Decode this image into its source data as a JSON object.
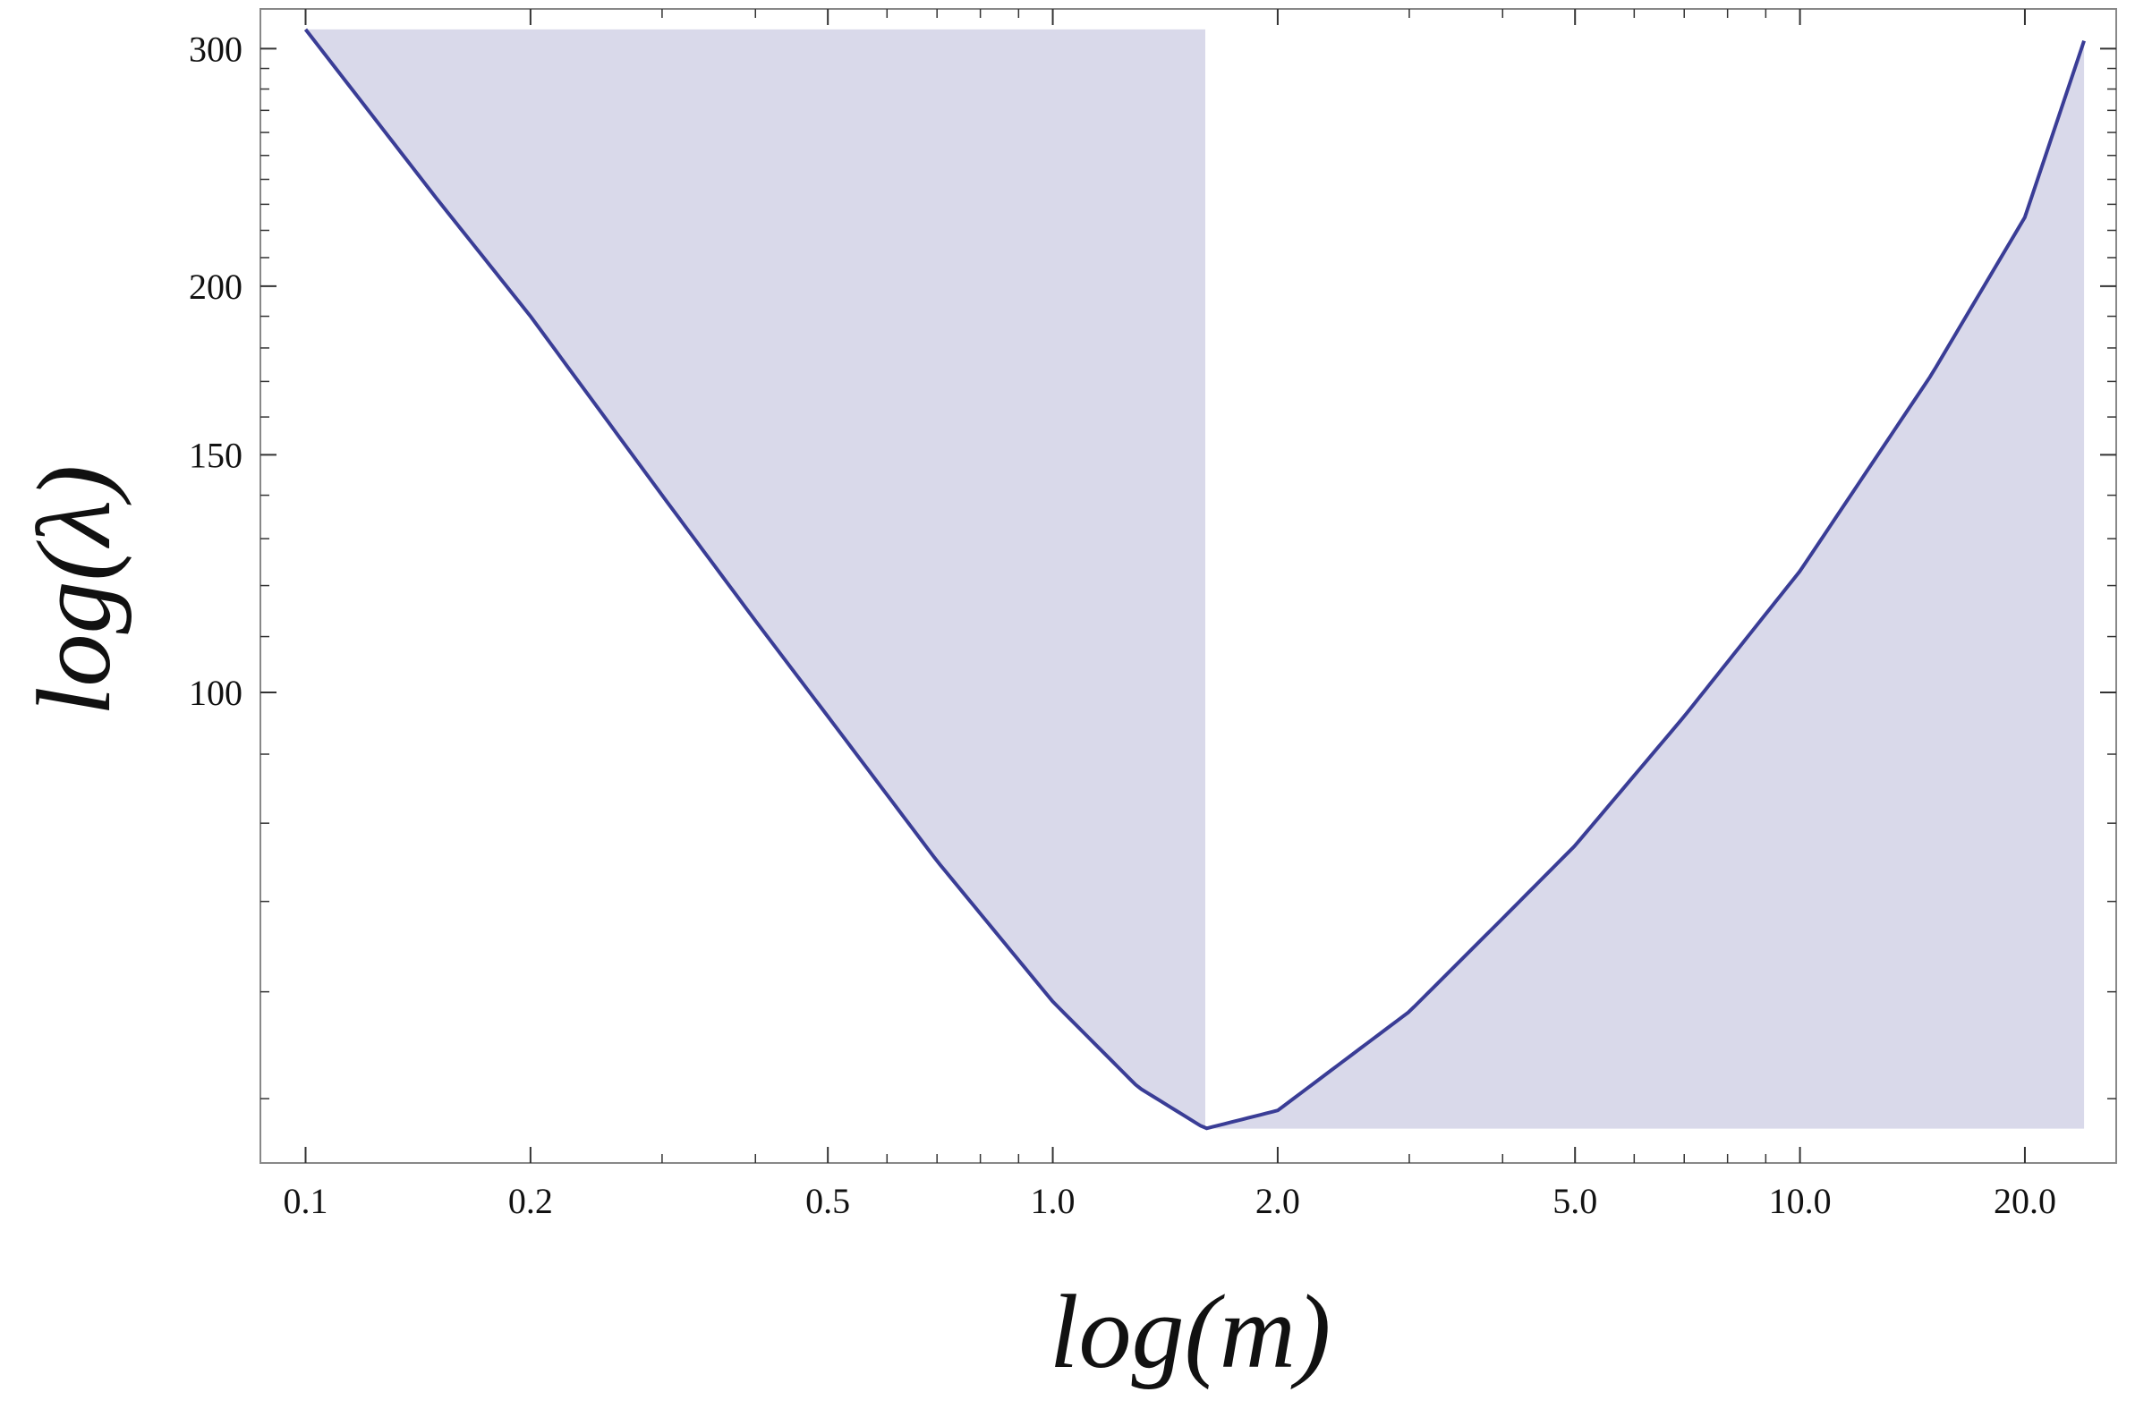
{
  "chart_data": {
    "type": "line",
    "title": "",
    "xlabel": "log(m)",
    "ylabel": "log(λ)",
    "x_scale": "log",
    "y_scale": "log",
    "xlim": [
      0.087,
      26.5
    ],
    "ylim": [
      44.8,
      321
    ],
    "x_ticks": [
      {
        "value": 0.1,
        "label": "0.1"
      },
      {
        "value": 0.2,
        "label": "0.2"
      },
      {
        "value": 0.5,
        "label": "0.5"
      },
      {
        "value": 1.0,
        "label": "1.0"
      },
      {
        "value": 2.0,
        "label": "2.0"
      },
      {
        "value": 5.0,
        "label": "5.0"
      },
      {
        "value": 10.0,
        "label": "10.0"
      },
      {
        "value": 20.0,
        "label": "20.0"
      }
    ],
    "x_minor_ticks": [
      0.3,
      0.4,
      0.6,
      0.7,
      0.8,
      0.9,
      3,
      4,
      6,
      7,
      8,
      9
    ],
    "y_ticks": [
      {
        "value": 100,
        "label": "100"
      },
      {
        "value": 150,
        "label": "150"
      },
      {
        "value": 200,
        "label": "200"
      },
      {
        "value": 300,
        "label": "300"
      }
    ],
    "y_minor_ticks": [
      50,
      60,
      70,
      80,
      90,
      110,
      120,
      130,
      140,
      160,
      170,
      180,
      190,
      210,
      220,
      230,
      240,
      250,
      260,
      270,
      280,
      290
    ],
    "series": [
      {
        "type": "line",
        "color": "#3a3d96",
        "x": [
          0.1,
          0.15,
          0.2,
          0.3,
          0.4,
          0.5,
          0.7,
          1.0,
          1.3,
          1.6,
          2.0,
          3.0,
          4.0,
          5.0,
          7.0,
          10.0,
          15.0,
          20.0,
          24.0
        ],
        "y": [
          310,
          232,
          190,
          140,
          113,
          96,
          75,
          59,
          51,
          47.5,
          49,
          58,
          68,
          77,
          96,
          123,
          172,
          225,
          304
        ]
      }
    ],
    "shaded_regions": [
      {
        "boundary": "curve",
        "side": "above",
        "x_from": 0.1,
        "x_to": 1.6,
        "color": "#d9d9ea",
        "upper": 310
      },
      {
        "boundary": "curve",
        "side": "below",
        "x_from": 1.6,
        "x_to": 24.0,
        "color": "#d9d9ea",
        "lower": 47.5
      }
    ],
    "grid": false,
    "legend": "none"
  }
}
